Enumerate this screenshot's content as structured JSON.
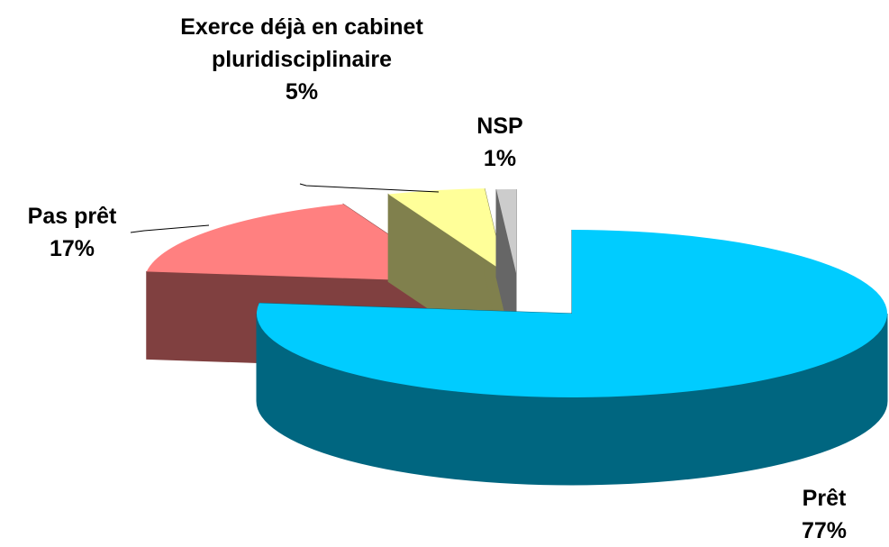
{
  "chart_data": {
    "type": "pie3d",
    "categories": [
      "Prêt",
      "Pas prêt",
      "Exerce déjà en cabinet pluridisciplinaire",
      "NSP"
    ],
    "values": [
      77,
      17,
      5,
      1
    ],
    "value_labels": [
      "77%",
      "17%",
      "5%",
      "1%"
    ],
    "colors": [
      "#00ccff",
      "#ff8080",
      "#ffff99",
      "#cccccc"
    ]
  }
}
